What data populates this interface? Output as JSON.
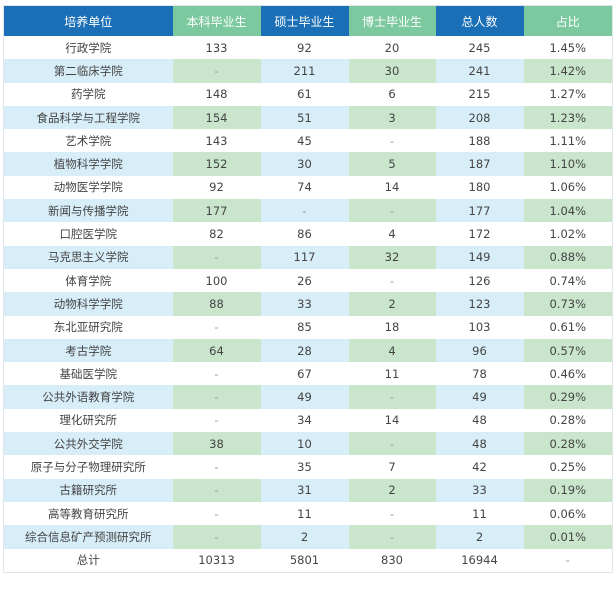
{
  "headers": [
    "培养单位",
    "本科毕业生",
    "硕士毕业生",
    "博士毕业生",
    "总人数",
    "占比"
  ],
  "rows": [
    [
      "行政学院",
      "133",
      "92",
      "20",
      "245",
      "1.45%"
    ],
    [
      "第二临床学院",
      "-",
      "211",
      "30",
      "241",
      "1.42%"
    ],
    [
      "药学院",
      "148",
      "61",
      "6",
      "215",
      "1.27%"
    ],
    [
      "食品科学与工程学院",
      "154",
      "51",
      "3",
      "208",
      "1.23%"
    ],
    [
      "艺术学院",
      "143",
      "45",
      "-",
      "188",
      "1.11%"
    ],
    [
      "植物科学学院",
      "152",
      "30",
      "5",
      "187",
      "1.10%"
    ],
    [
      "动物医学学院",
      "92",
      "74",
      "14",
      "180",
      "1.06%"
    ],
    [
      "新闻与传播学院",
      "177",
      "-",
      "-",
      "177",
      "1.04%"
    ],
    [
      "口腔医学院",
      "82",
      "86",
      "4",
      "172",
      "1.02%"
    ],
    [
      "马克思主义学院",
      "-",
      "117",
      "32",
      "149",
      "0.88%"
    ],
    [
      "体育学院",
      "100",
      "26",
      "-",
      "126",
      "0.74%"
    ],
    [
      "动物科学学院",
      "88",
      "33",
      "2",
      "123",
      "0.73%"
    ],
    [
      "东北亚研究院",
      "-",
      "85",
      "18",
      "103",
      "0.61%"
    ],
    [
      "考古学院",
      "64",
      "28",
      "4",
      "96",
      "0.57%"
    ],
    [
      "基础医学院",
      "-",
      "67",
      "11",
      "78",
      "0.46%"
    ],
    [
      "公共外语教育学院",
      "-",
      "49",
      "-",
      "49",
      "0.29%"
    ],
    [
      "理化研究所",
      "-",
      "34",
      "14",
      "48",
      "0.28%"
    ],
    [
      "公共外交学院",
      "38",
      "10",
      "-",
      "48",
      "0.28%"
    ],
    [
      "原子与分子物理研究所",
      "-",
      "35",
      "7",
      "42",
      "0.25%"
    ],
    [
      "古籍研究所",
      "-",
      "31",
      "2",
      "33",
      "0.19%"
    ],
    [
      "高等教育研究所",
      "-",
      "11",
      "-",
      "11",
      "0.06%"
    ],
    [
      "综合信息矿产预测研究所",
      "-",
      "2",
      "-",
      "2",
      "0.01%"
    ],
    [
      "总计",
      "10313",
      "5801",
      "830",
      "16944",
      "-"
    ]
  ]
}
